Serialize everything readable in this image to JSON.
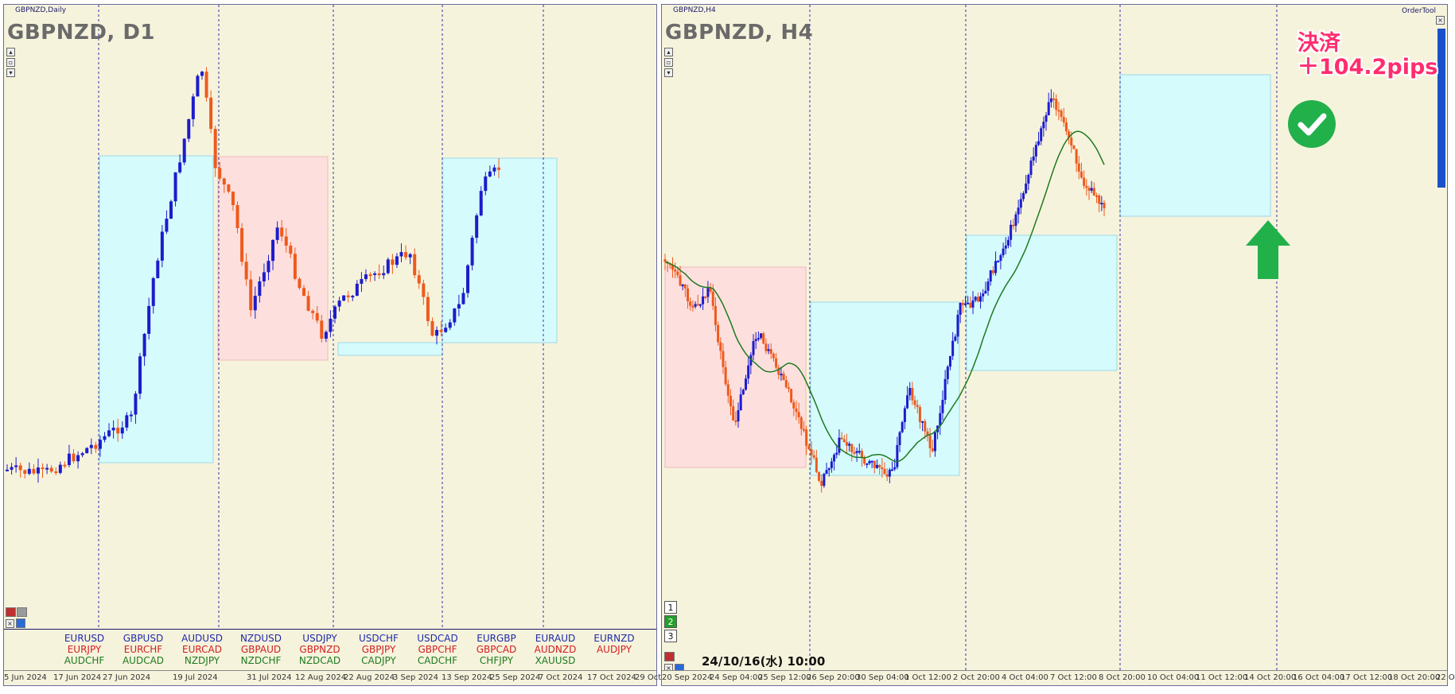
{
  "left_chart": {
    "small_title": "GBPNZD,Daily",
    "title": "GBPNZD, D1",
    "x_labels": [
      "5 Jun 2024",
      "17 Jun 2024",
      "27 Jun 2024",
      "19 Jul 2024",
      "31 Jul 2024",
      "12 Aug 2024",
      "22 Aug 2024",
      "3 Sep 2024",
      "13 Sep 2024",
      "25 Sep 2024",
      "7 Oct 2024",
      "17 Oct 2024",
      "29 Oct"
    ]
  },
  "right_chart": {
    "small_title": "GBPNZD,H4",
    "title": "GBPNZD, H4",
    "order_tool": "OrderTool",
    "timestamp": "24/10/16(水) 10:00",
    "settle_line1": "決済",
    "settle_line2": "＋104.2pips",
    "page_buttons": [
      "1",
      "2",
      "3"
    ],
    "x_labels": [
      "20 Sep 2024",
      "24 Sep 04:00",
      "25 Sep 12:00",
      "26 Sep 20:00",
      "30 Sep 04:00",
      "1 Oct 12:00",
      "2 Oct 20:00",
      "4 Oct 04:00",
      "7 Oct 12:00",
      "8 Oct 20:00",
      "10 Oct 04:00",
      "11 Oct 12:00",
      "14 Oct 20:00",
      "16 Oct 04:00",
      "17 Oct 12:00",
      "18 Oct 20:00",
      "22 O"
    ]
  },
  "symbols": [
    [
      "EURUSD",
      "EURJPY",
      "AUDCHF"
    ],
    [
      "GBPUSD",
      "EURCHF",
      "AUDCAD"
    ],
    [
      "AUDUSD",
      "EURCAD",
      "NZDJPY"
    ],
    [
      "NZDUSD",
      "GBPAUD",
      "NZDCHF"
    ],
    [
      "USDJPY",
      "GBPNZD",
      "NZDCAD"
    ],
    [
      "USDCHF",
      "GBPJPY",
      "CADJPY"
    ],
    [
      "USDCAD",
      "GBPCHF",
      "CADCHF"
    ],
    [
      "EURGBP",
      "GBPCAD",
      "CHFJPY"
    ],
    [
      "EURAUD",
      "AUDNZD",
      "XAUUSD"
    ],
    [
      "EURNZD",
      "AUDJPY",
      ""
    ]
  ],
  "colors": {
    "bull": "#1c1ccc",
    "bear": "#ee5a1c",
    "ma": "#1e7a1e",
    "long_zone": "#d6fbfc",
    "short_zone": "#fde0de",
    "settle_text": "#ff2d6e",
    "check": "#22b04b"
  },
  "icons": [
    "check-icon",
    "up-arrow-icon",
    "close-icon"
  ]
}
